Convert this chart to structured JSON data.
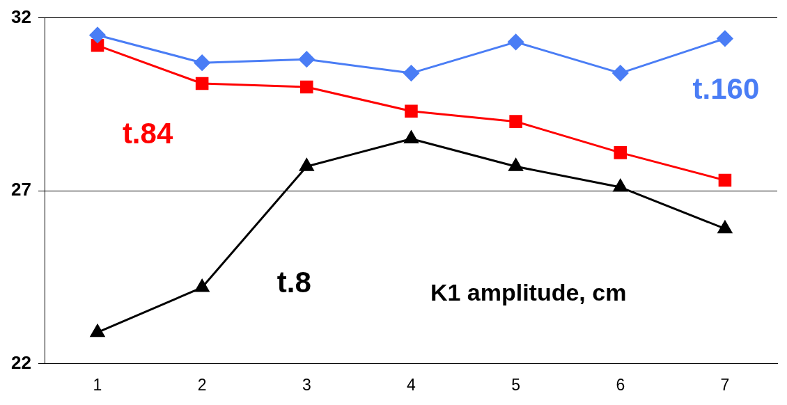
{
  "chart_data": {
    "type": "line",
    "categories": [
      "1",
      "2",
      "3",
      "4",
      "5",
      "6",
      "7"
    ],
    "series": [
      {
        "name": "t.160",
        "color": "#4a7df5",
        "marker": "diamond",
        "values": [
          31.5,
          30.7,
          30.8,
          30.4,
          31.3,
          30.4,
          31.4
        ]
      },
      {
        "name": "t.84",
        "color": "#ff0000",
        "marker": "square",
        "values": [
          31.2,
          30.1,
          30.0,
          29.3,
          29.0,
          28.1,
          27.3
        ]
      },
      {
        "name": "t.8",
        "color": "#000000",
        "marker": "triangle",
        "values": [
          22.9,
          24.2,
          27.7,
          28.5,
          27.7,
          27.1,
          25.9
        ]
      }
    ],
    "annotations": [
      "K1 amplitude, cm"
    ],
    "ylim": [
      22,
      32
    ],
    "yticks": [
      22,
      27,
      32
    ],
    "grid": "y",
    "legend": false,
    "line_style": "solid"
  }
}
